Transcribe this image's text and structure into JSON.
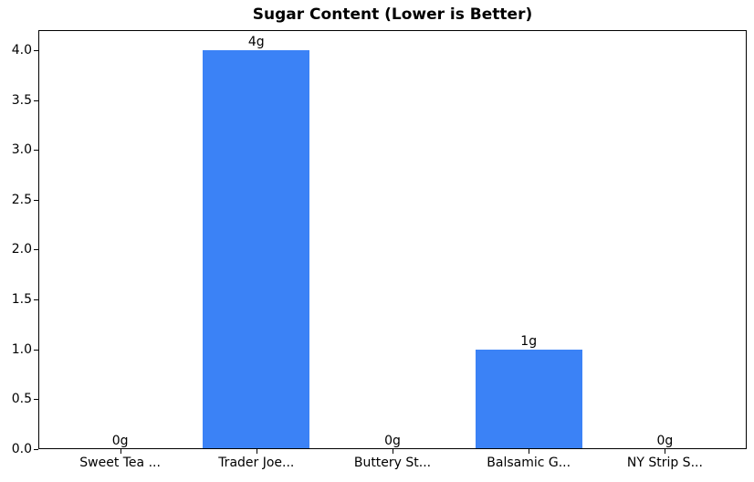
{
  "chart_data": {
    "type": "bar",
    "title": "Sugar Content (Lower is Better)",
    "categories": [
      "Sweet Tea ...",
      "Trader Joe...",
      "Buttery St...",
      "Balsamic G...",
      "NY Strip S..."
    ],
    "values": [
      0,
      4,
      0,
      1,
      0
    ],
    "value_labels": [
      "0g",
      "4g",
      "0g",
      "1g",
      "0g"
    ],
    "yticks": [
      0.0,
      0.5,
      1.0,
      1.5,
      2.0,
      2.5,
      3.0,
      3.5,
      4.0
    ],
    "ylim": [
      0,
      4.2
    ],
    "xlabel": "",
    "ylabel": "",
    "bar_color": "#3b82f6",
    "axis_color": "#000000",
    "background_color": "#ffffff",
    "grid": false,
    "legend": null
  }
}
